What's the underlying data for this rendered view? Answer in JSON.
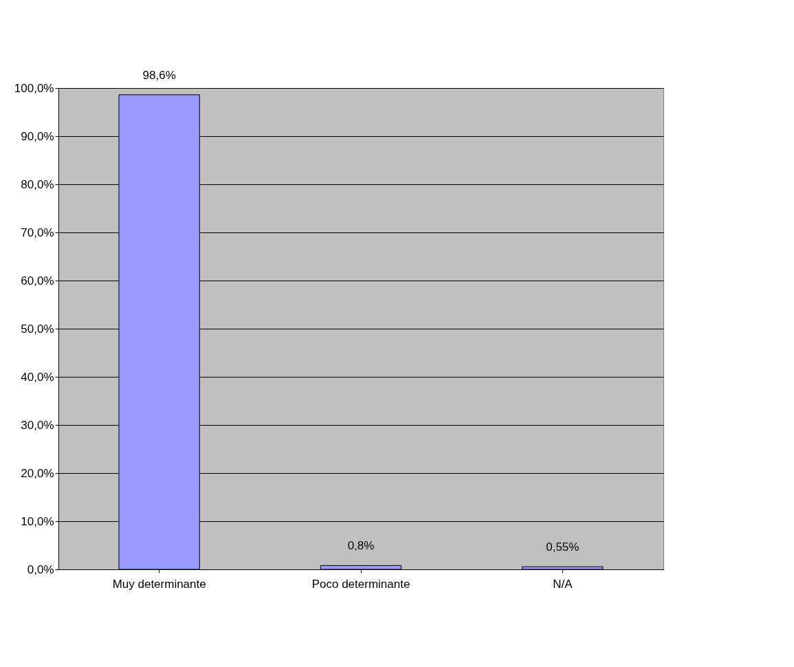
{
  "chart_data": {
    "type": "bar",
    "categories": [
      "Muy determinante",
      "Poco determinante",
      "N/A"
    ],
    "values": [
      98.6,
      0.8,
      0.55
    ],
    "color": "#9999ff",
    "value_labels": [
      "98,6%",
      "0,8%",
      "0,55%"
    ],
    "ylim": [
      0,
      100
    ],
    "yticks": [
      {
        "value": 0,
        "label": "0,0%"
      },
      {
        "value": 10,
        "label": "10,0%"
      },
      {
        "value": 20,
        "label": "20,0%"
      },
      {
        "value": 30,
        "label": "30,0%"
      },
      {
        "value": 40,
        "label": "40,0%"
      },
      {
        "value": 50,
        "label": "50,0%"
      },
      {
        "value": 60,
        "label": "60,0%"
      },
      {
        "value": 70,
        "label": "70,0%"
      },
      {
        "value": 80,
        "label": "80,0%"
      },
      {
        "value": 90,
        "label": "90,0%"
      },
      {
        "value": 100,
        "label": "100,0%"
      }
    ],
    "grid": "y"
  }
}
